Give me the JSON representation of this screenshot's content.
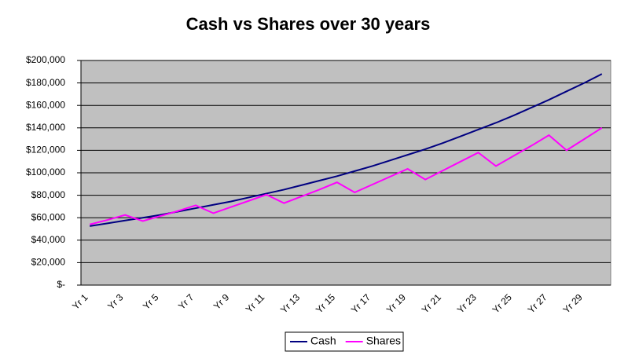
{
  "chart_data": {
    "type": "line",
    "title": "Cash vs Shares over 30 years",
    "categories": [
      "Yr 1",
      null,
      "Yr 3",
      null,
      "Yr 5",
      null,
      "Yr 7",
      null,
      "Yr 9",
      null,
      "Yr 11",
      null,
      "Yr 13",
      null,
      "Yr 15",
      null,
      "Yr 17",
      null,
      "Yr 19",
      null,
      "Yr 21",
      null,
      "Yr 23",
      null,
      "Yr 25",
      null,
      "Yr 27",
      null,
      "Yr 29",
      null
    ],
    "series": [
      {
        "name": "Cash",
        "color": "#000080",
        "values": [
          52500,
          55000,
          57500,
          60000,
          62500,
          65500,
          68500,
          71500,
          74500,
          78000,
          81500,
          85000,
          89000,
          93000,
          97000,
          101500,
          106000,
          111000,
          116000,
          121000,
          126500,
          132500,
          138500,
          144500,
          151000,
          158000,
          165000,
          172500,
          180000,
          188000
        ]
      },
      {
        "name": "Shares",
        "color": "#ff00ff",
        "values": [
          54000,
          58000,
          62500,
          57000,
          61500,
          66000,
          71000,
          64000,
          69500,
          75000,
          80500,
          73000,
          79000,
          85000,
          91500,
          82500,
          89500,
          96500,
          103500,
          94000,
          102000,
          110000,
          118000,
          106000,
          115000,
          124000,
          133500,
          120000,
          130000,
          140000
        ]
      }
    ],
    "ylim": [
      0,
      200000
    ],
    "yticks": [
      {
        "value": 0,
        "label": "$-"
      },
      {
        "value": 20000,
        "label": "$20,000"
      },
      {
        "value": 40000,
        "label": "$40,000"
      },
      {
        "value": 60000,
        "label": "$60,000"
      },
      {
        "value": 80000,
        "label": "$80,000"
      },
      {
        "value": 100000,
        "label": "$100,000"
      },
      {
        "value": 120000,
        "label": "$120,000"
      },
      {
        "value": 140000,
        "label": "$140,000"
      },
      {
        "value": 160000,
        "label": "$160,000"
      },
      {
        "value": 180000,
        "label": "$180,000"
      },
      {
        "value": 200000,
        "label": "$200,000"
      }
    ],
    "grid": true,
    "legend": "bottom"
  }
}
